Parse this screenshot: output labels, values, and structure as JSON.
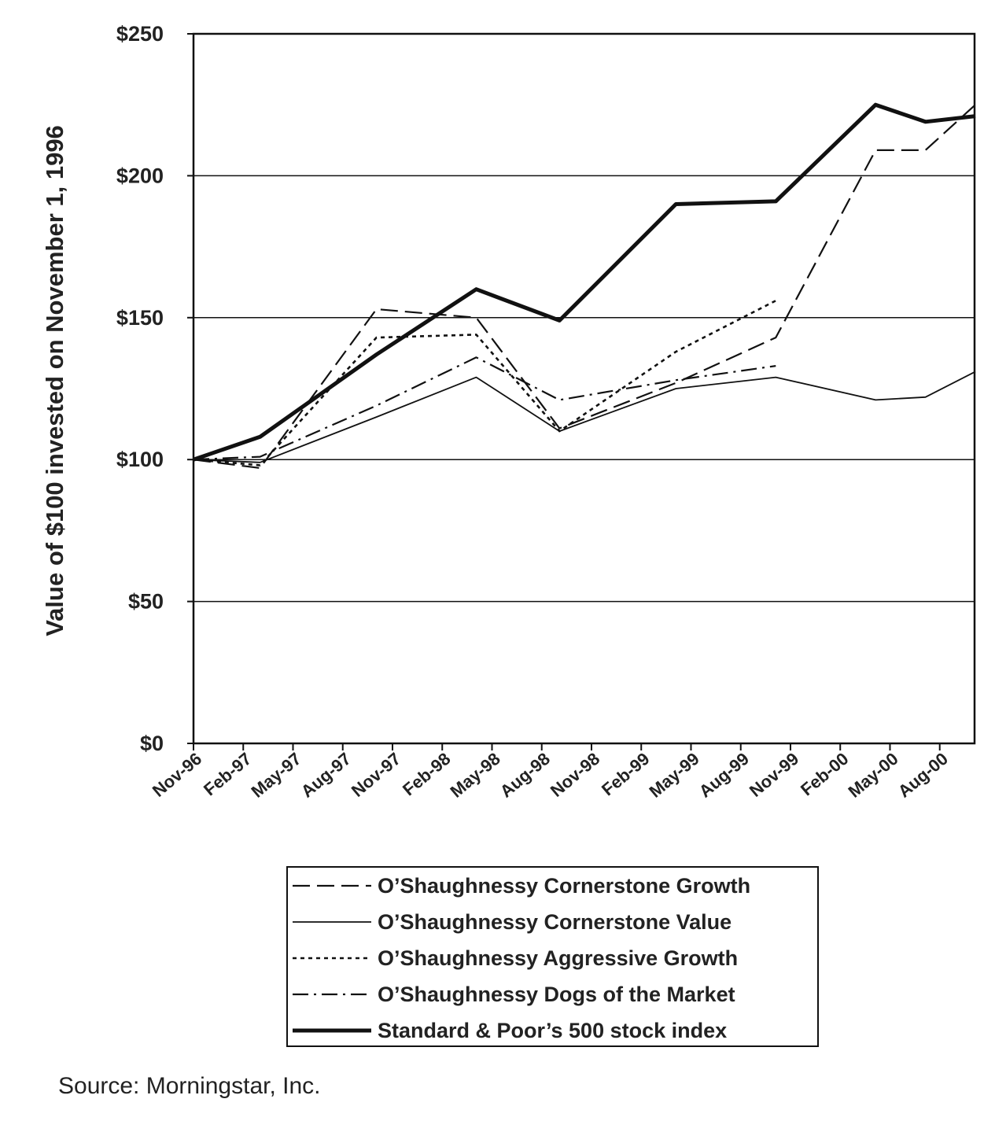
{
  "chart_data": {
    "type": "line",
    "ylabel": "Value of $100 invested on November 1, 1996",
    "xlabel": "",
    "ylim": [
      0,
      250
    ],
    "yticks": [
      0,
      50,
      100,
      150,
      200,
      250
    ],
    "ytick_labels": [
      "$0",
      "$50",
      "$100",
      "$150",
      "$200",
      "$250"
    ],
    "x_month_range": [
      "1996-11",
      "2000-10"
    ],
    "xtick_labels": [
      "Nov-96",
      "Feb-97",
      "May-97",
      "Aug-97",
      "Nov-97",
      "Feb-98",
      "May-98",
      "Aug-98",
      "Nov-98",
      "Feb-99",
      "May-99",
      "Aug-99",
      "Nov-99",
      "Feb-00",
      "May-00",
      "Aug-00"
    ],
    "grid": true,
    "legend_position": "bottom",
    "series": [
      {
        "name": "O’Shaughnessy Cornerstone Growth",
        "style": "long-dash",
        "points": [
          [
            "1996-11",
            100
          ],
          [
            "1997-03",
            97
          ],
          [
            "1997-10",
            153
          ],
          [
            "1998-04",
            150
          ],
          [
            "1998-09",
            111
          ],
          [
            "1999-04",
            127
          ],
          [
            "1999-10",
            143
          ],
          [
            "2000-04",
            209
          ],
          [
            "2000-07",
            209
          ],
          [
            "2000-10",
            225
          ]
        ]
      },
      {
        "name": "O’Shaughnessy Cornerstone Value",
        "style": "thin-solid",
        "points": [
          [
            "1996-11",
            100
          ],
          [
            "1997-03",
            99
          ],
          [
            "1997-10",
            115
          ],
          [
            "1998-04",
            129
          ],
          [
            "1998-09",
            110
          ],
          [
            "1999-04",
            125
          ],
          [
            "1999-10",
            129
          ],
          [
            "2000-04",
            121
          ],
          [
            "2000-07",
            122
          ],
          [
            "2000-10",
            131
          ]
        ]
      },
      {
        "name": "O’Shaughnessy Aggressive Growth",
        "style": "short-dash",
        "points": [
          [
            "1996-11",
            100
          ],
          [
            "1997-03",
            98
          ],
          [
            "1997-10",
            143
          ],
          [
            "1998-04",
            144
          ],
          [
            "1998-09",
            110
          ],
          [
            "1999-04",
            138
          ],
          [
            "1999-10",
            156
          ]
        ]
      },
      {
        "name": "O’Shaughnessy Dogs of the Market",
        "style": "dash-dot",
        "points": [
          [
            "1996-11",
            100
          ],
          [
            "1997-03",
            101
          ],
          [
            "1997-10",
            119
          ],
          [
            "1998-04",
            136
          ],
          [
            "1998-09",
            121
          ],
          [
            "1999-04",
            128
          ],
          [
            "1999-10",
            133
          ]
        ]
      },
      {
        "name": "Standard & Poor’s 500 stock index",
        "style": "thick-solid",
        "points": [
          [
            "1996-11",
            100
          ],
          [
            "1997-03",
            108
          ],
          [
            "1997-10",
            137
          ],
          [
            "1998-04",
            160
          ],
          [
            "1998-09",
            149
          ],
          [
            "1999-04",
            190
          ],
          [
            "1999-10",
            191
          ],
          [
            "2000-04",
            225
          ],
          [
            "2000-07",
            219
          ],
          [
            "2000-10",
            221
          ]
        ]
      }
    ]
  },
  "source_note": "Source: Morningstar, Inc."
}
